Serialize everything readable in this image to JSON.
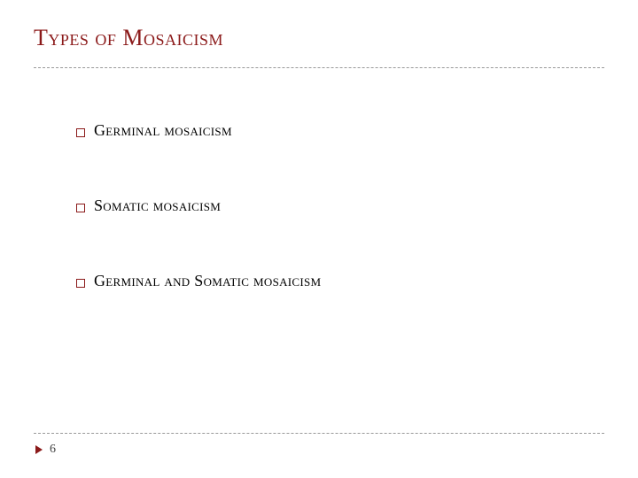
{
  "slide": {
    "title": "Types of Mosaicism",
    "title_color": "#8b1a1a",
    "divider_color": "#999999",
    "bullets": [
      {
        "label": "Germinal mosaicism"
      },
      {
        "label": "Somatic mosaicism"
      },
      {
        "label": "Germinal and Somatic mosaicism"
      }
    ],
    "bullet_marker_color": "#8b1a1a",
    "page_arrow_color": "#8b1a1a",
    "page_number": "6",
    "background_color": "#ffffff"
  }
}
